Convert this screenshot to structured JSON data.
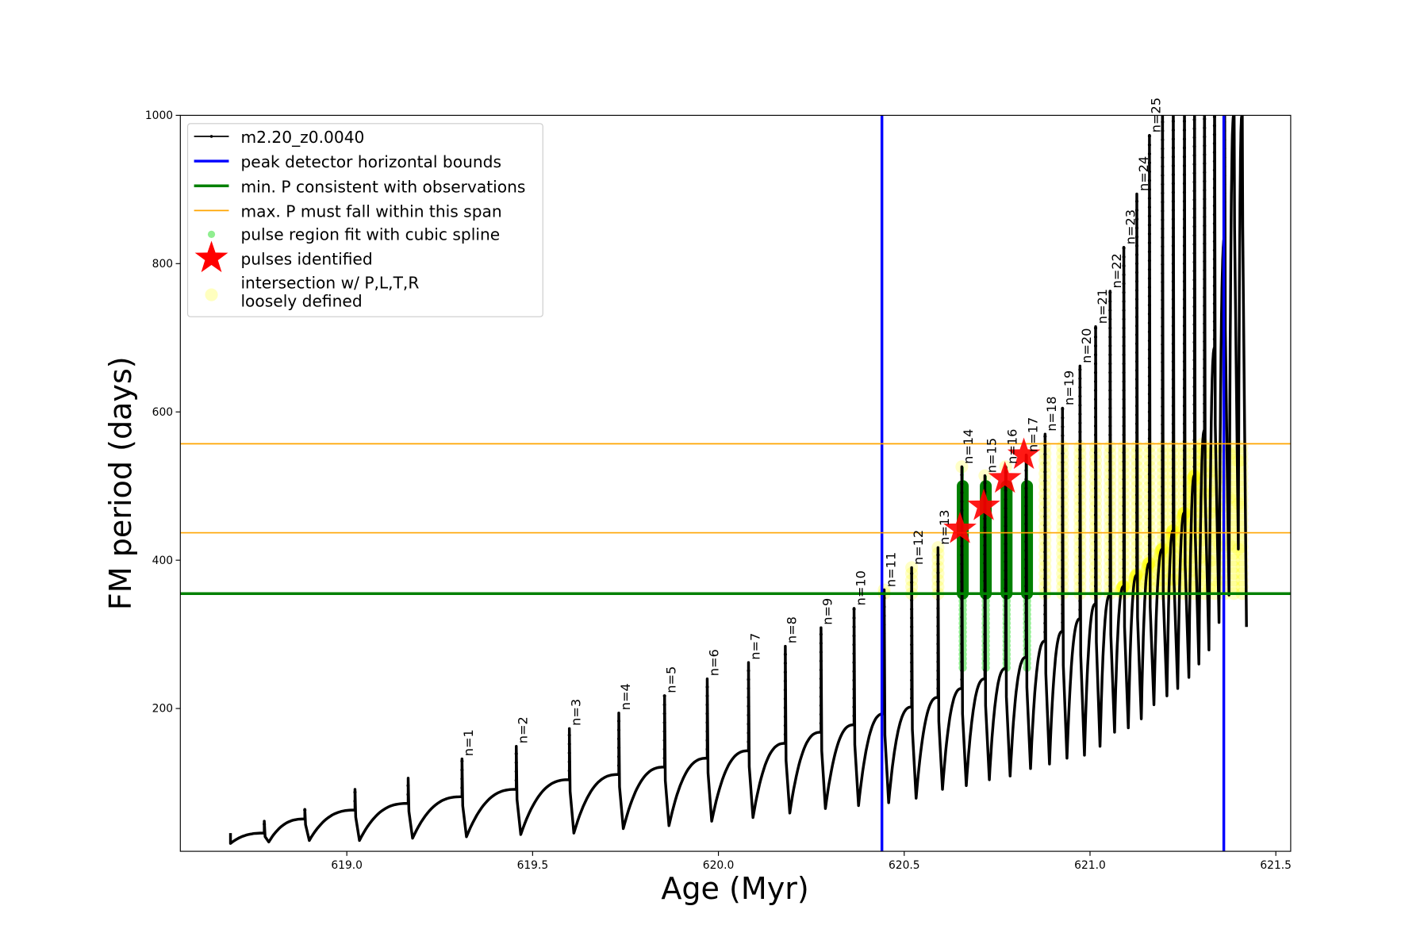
{
  "chart_data": {
    "type": "line",
    "title": "",
    "xlabel": "Age (Myr)",
    "ylabel": "FM period (days)",
    "xlim": [
      618.552,
      621.54
    ],
    "ylim": [
      7.4,
      1000
    ],
    "xticks": [
      619.0,
      619.5,
      620.0,
      620.5,
      621.0,
      621.5
    ],
    "xtick_labels": [
      "619.0",
      "619.5",
      "620.0",
      "620.5",
      "621.0",
      "621.5"
    ],
    "yticks": [
      200,
      400,
      600,
      800,
      1000
    ],
    "ytick_labels": [
      "200",
      "400",
      "600",
      "800",
      "1000"
    ],
    "grid": false,
    "legend_placement": "upper-left",
    "colors": {
      "curve": "#000000",
      "bounds": "#0000ff",
      "min_p": "#008000",
      "max_p": "#ffa500",
      "spline": "#90ee90",
      "star": "#ff0000",
      "loose": "#ffff00"
    },
    "legend": [
      {
        "label": "m2.20_z0.0040",
        "kind": "line-marker"
      },
      {
        "label": "peak detector horizontal bounds",
        "kind": "blue-line"
      },
      {
        "label": "min. P consistent with observations",
        "kind": "green-line"
      },
      {
        "label": "max. P must fall within this span",
        "kind": "orange-line"
      },
      {
        "label": "pulse region fit with cubic spline",
        "kind": "lightgreen-dot"
      },
      {
        "label": "pulses identified",
        "kind": "red-star"
      },
      {
        "label": "intersection w/ P,L,T,R",
        "label2": "loosely defined",
        "kind": "yellow-dot"
      }
    ],
    "series_name": "m2.20_z0.0040",
    "curve_start": {
      "age": 618.687,
      "period": 18
    },
    "pulses": [
      {
        "label": "",
        "age": 618.778,
        "pre": 32,
        "peak": 48,
        "trough": 20
      },
      {
        "label": "",
        "age": 618.887,
        "pre": 51,
        "peak": 64,
        "trough": 22
      },
      {
        "label": "",
        "age": 619.022,
        "pre": 63,
        "peak": 91,
        "trough": 22
      },
      {
        "label": "",
        "age": 619.165,
        "pre": 72,
        "peak": 106,
        "trough": 25
      },
      {
        "label": "n=1",
        "age": 619.31,
        "pre": 81,
        "peak": 132,
        "trough": 27
      },
      {
        "label": "n=2",
        "age": 619.456,
        "pre": 91,
        "peak": 149,
        "trough": 30
      },
      {
        "label": "n=3",
        "age": 619.599,
        "pre": 104,
        "peak": 173,
        "trough": 32
      },
      {
        "label": "n=4",
        "age": 619.732,
        "pre": 111,
        "peak": 194,
        "trough": 38
      },
      {
        "label": "n=5",
        "age": 619.855,
        "pre": 121,
        "peak": 217,
        "trough": 42
      },
      {
        "label": "n=6",
        "age": 619.97,
        "pre": 133,
        "peak": 240,
        "trough": 48
      },
      {
        "label": "n=7",
        "age": 620.081,
        "pre": 143,
        "peak": 262,
        "trough": 53
      },
      {
        "label": "n=8",
        "age": 620.18,
        "pre": 153,
        "peak": 284,
        "trough": 59
      },
      {
        "label": "n=9",
        "age": 620.276,
        "pre": 168,
        "peak": 309,
        "trough": 65
      },
      {
        "label": "n=10",
        "age": 620.365,
        "pre": 178,
        "peak": 335,
        "trough": 69
      },
      {
        "label": "n=11",
        "age": 620.446,
        "pre": 193,
        "peak": 360,
        "trough": 73
      },
      {
        "label": "n=12",
        "age": 620.52,
        "pre": 202,
        "peak": 390,
        "trough": 79
      },
      {
        "label": "n=13",
        "age": 620.591,
        "pre": 215,
        "peak": 417,
        "trough": 91
      },
      {
        "label": "n=14",
        "age": 620.655,
        "pre": 227,
        "peak": 526,
        "trough": 96
      },
      {
        "label": "n=15",
        "age": 620.717,
        "pre": 240,
        "peak": 514,
        "trough": 104
      },
      {
        "label": "n=16",
        "age": 620.773,
        "pre": 254,
        "peak": 526,
        "trough": 109
      },
      {
        "label": "n=17",
        "age": 620.828,
        "pre": 269,
        "peak": 542,
        "trough": 119
      },
      {
        "label": "n=18",
        "age": 620.879,
        "pre": 291,
        "peak": 570,
        "trough": 125
      },
      {
        "label": "n=19",
        "age": 620.926,
        "pre": 304,
        "peak": 605,
        "trough": 133
      },
      {
        "label": "n=20",
        "age": 620.973,
        "pre": 321,
        "peak": 662,
        "trough": 137
      },
      {
        "label": "n=21",
        "age": 621.015,
        "pre": 341,
        "peak": 715,
        "trough": 149
      },
      {
        "label": "n=22",
        "age": 621.054,
        "pre": 353,
        "peak": 763,
        "trough": 168
      },
      {
        "label": "n=23",
        "age": 621.091,
        "pre": 365,
        "peak": 822,
        "trough": 174
      },
      {
        "label": "n=24",
        "age": 621.126,
        "pre": 380,
        "peak": 894,
        "trough": 186
      },
      {
        "label": "n=25",
        "age": 621.16,
        "pre": 396,
        "peak": 973,
        "trough": 205
      },
      {
        "label": "",
        "age": 621.195,
        "pre": 415,
        "peak": 1100,
        "trough": 217
      },
      {
        "label": "",
        "age": 621.224,
        "pre": 440,
        "peak": 1100,
        "trough": 227
      },
      {
        "label": "",
        "age": 621.254,
        "pre": 464,
        "peak": 1100,
        "trough": 242
      },
      {
        "label": "",
        "age": 621.281,
        "pre": 514,
        "peak": 1100,
        "trough": 260
      },
      {
        "label": "",
        "age": 621.308,
        "pre": 575,
        "peak": 1100,
        "trough": 279
      },
      {
        "label": "",
        "age": 621.335,
        "pre": 686,
        "peak": 1100,
        "trough": 316
      },
      {
        "label": "",
        "age": 621.362,
        "pre": 835,
        "peak": 1100,
        "trough": 353
      },
      {
        "label": "",
        "age": 621.387,
        "pre": 1000,
        "peak": 1100,
        "trough": 415
      },
      {
        "label": "",
        "age": 621.409,
        "pre": 1000,
        "peak": 1100,
        "trough": 310
      }
    ],
    "peak_detector_bounds": [
      620.44,
      621.36
    ],
    "min_period": 355,
    "max_period_span": [
      437,
      557
    ],
    "spline_pulses": [
      "n=14",
      "n=15",
      "n=16",
      "n=17"
    ],
    "spline_region": {
      "top": 500,
      "low": 255
    },
    "pulses_identified": [
      {
        "age": 620.65,
        "period": 442
      },
      {
        "age": 620.714,
        "period": 473
      },
      {
        "age": 620.771,
        "period": 510
      },
      {
        "age": 620.822,
        "period": 542
      }
    ]
  }
}
